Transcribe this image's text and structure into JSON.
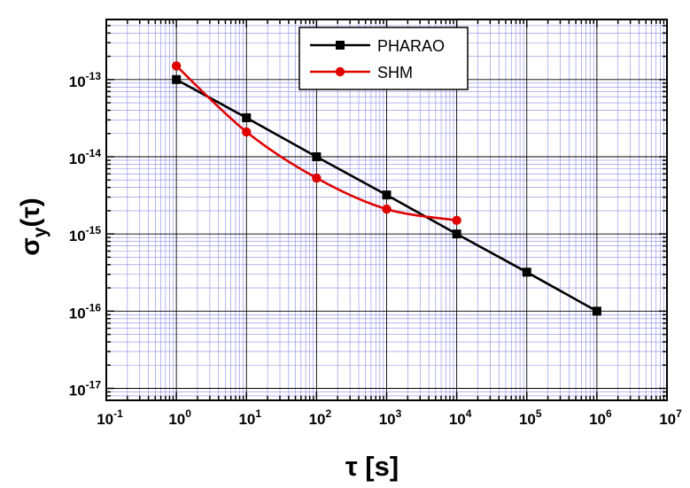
{
  "chart_data": {
    "type": "line",
    "x_scale": "log",
    "y_scale": "log",
    "xlim": [
      0.1,
      10000000
    ],
    "ylim": [
      7e-18,
      6e-13
    ],
    "x_ticks": [
      {
        "base": "10",
        "exp": "-1",
        "value": 0.1
      },
      {
        "base": "10",
        "exp": "0",
        "value": 1
      },
      {
        "base": "10",
        "exp": "1",
        "value": 10
      },
      {
        "base": "10",
        "exp": "2",
        "value": 100
      },
      {
        "base": "10",
        "exp": "3",
        "value": 1000
      },
      {
        "base": "10",
        "exp": "4",
        "value": 10000
      },
      {
        "base": "10",
        "exp": "5",
        "value": 100000
      },
      {
        "base": "10",
        "exp": "6",
        "value": 1000000
      },
      {
        "base": "10",
        "exp": "7",
        "value": 10000000
      }
    ],
    "y_ticks": [
      {
        "base": "10",
        "exp": "-13",
        "value": 1e-13
      },
      {
        "base": "10",
        "exp": "-14",
        "value": 1e-14
      },
      {
        "base": "10",
        "exp": "-15",
        "value": 1e-15
      },
      {
        "base": "10",
        "exp": "-16",
        "value": 1e-16
      },
      {
        "base": "10",
        "exp": "-17",
        "value": 1e-17
      }
    ],
    "xlabel": "τ [s]",
    "ylabel": {
      "main": "σ",
      "sub": "y",
      "arg": "(τ)"
    },
    "grid": true,
    "legend_position": "top-center",
    "series": [
      {
        "name": "PHARAO",
        "color": "#000000",
        "marker": "square",
        "smooth": false,
        "x": [
          1,
          10,
          100,
          1000,
          10000,
          100000,
          1000000
        ],
        "y": [
          1e-13,
          3.2e-14,
          1e-14,
          3.2e-15,
          1e-15,
          3.2e-16,
          1e-16
        ]
      },
      {
        "name": "SHM",
        "color": "#e00000",
        "marker": "circle",
        "smooth": true,
        "x": [
          1,
          10,
          100,
          1000,
          10000
        ],
        "y": [
          1.5e-13,
          2.1e-14,
          5.3e-15,
          2.1e-15,
          1.5e-15
        ]
      }
    ],
    "grid_colors": {
      "major": "#000000",
      "minor": "#8a8ae6"
    }
  }
}
